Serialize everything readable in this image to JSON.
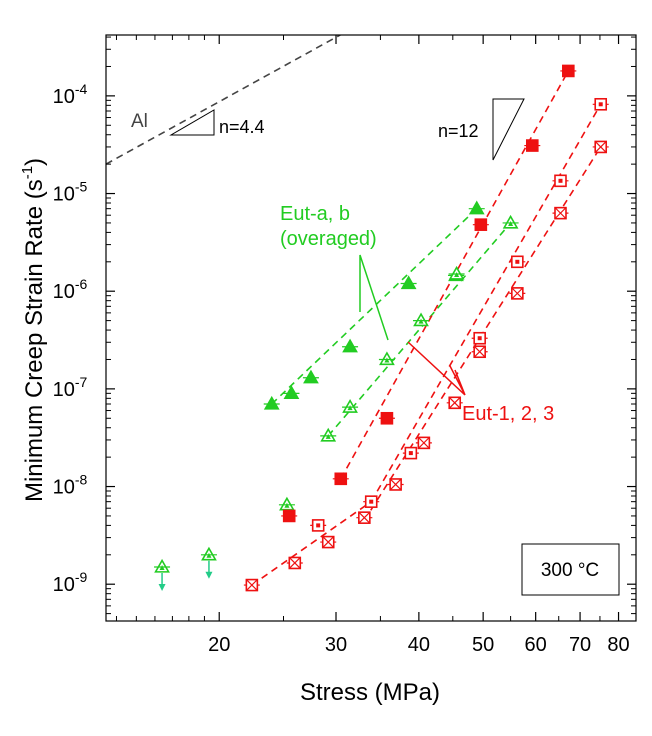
{
  "chart_data": {
    "type": "scatter",
    "xlabel": "Stress (MPa)",
    "ylabel_main": "Minimum Creep Strain Rate (s",
    "ylabel_sup": "-1",
    "ylabel_close": ")",
    "x_scale": "log",
    "y_scale": "log",
    "xlim": [
      13.5,
      85
    ],
    "ylim": [
      4.2e-10,
      0.00042
    ],
    "x_ticks": [
      20,
      30,
      40,
      50,
      60,
      70,
      80
    ],
    "x_tick_labels": [
      "20",
      "30",
      "40",
      "50",
      "60",
      "70",
      "80"
    ],
    "y_ticks": [
      1e-09,
      1e-08,
      1e-07,
      1e-06,
      1e-05,
      0.0001
    ],
    "y_tick_labels": [
      {
        "base": "10",
        "exp": "-9"
      },
      {
        "base": "10",
        "exp": "-8"
      },
      {
        "base": "10",
        "exp": "-7"
      },
      {
        "base": "10",
        "exp": "-6"
      },
      {
        "base": "10",
        "exp": "-5"
      },
      {
        "base": "10",
        "exp": "-4"
      }
    ],
    "grid": false,
    "colors": {
      "green": "#22cc22",
      "red": "#ee1111",
      "arrow": "#22cc88",
      "gray": "#444444"
    },
    "series": [
      {
        "group": "Eut",
        "marker": "triangle-filled",
        "color": "#22cc22",
        "x": [
          24.0,
          25.7,
          27.5,
          31.5,
          38.6,
          45.5,
          48.9
        ],
        "y": [
          7e-08,
          9e-08,
          1.3e-07,
          2.7e-07,
          1.2e-06,
          1.45e-06,
          7e-06
        ]
      },
      {
        "group": "Eut",
        "marker": "triangle-hollow",
        "color": "#22cc22",
        "x": [
          25.3,
          29.2,
          31.5,
          35.8,
          40.3,
          45.6,
          55.0
        ],
        "y": [
          6.5e-09,
          3.3e-08,
          6.5e-08,
          2e-07,
          5e-07,
          1.5e-06,
          5e-06
        ]
      },
      {
        "group": "Eut",
        "marker": "square-filled",
        "color": "#ee1111",
        "x": [
          25.5,
          30.5,
          35.8,
          49.6,
          59.3,
          67.2
        ],
        "y": [
          5e-09,
          1.2e-08,
          5e-08,
          4.8e-06,
          3.1e-05,
          0.00018
        ]
      },
      {
        "group": "Eut",
        "marker": "square-hollow",
        "color": "#ee1111",
        "x": [
          28.2,
          33.9,
          38.9,
          49.4,
          56.3,
          65.4,
          75.2
        ],
        "y": [
          4e-09,
          7e-09,
          2.2e-08,
          3.3e-07,
          2e-06,
          1.35e-05,
          8.2e-05
        ]
      },
      {
        "group": "Eut",
        "marker": "square-crossed",
        "color": "#ee1111",
        "x": [
          22.4,
          26.0,
          29.2,
          33.1,
          36.9,
          40.7,
          45.3,
          49.4,
          56.3,
          65.4,
          75.2
        ],
        "y": [
          9.8e-10,
          1.65e-09,
          2.7e-09,
          4.8e-09,
          1.05e-08,
          2.8e-08,
          7.2e-08,
          2.4e-07,
          9.5e-07,
          6.3e-06,
          3e-05
        ]
      },
      {
        "group": "Eut",
        "marker": "triangle-hollow-arrow",
        "color": "#22cc22",
        "x": [
          16.4,
          19.3
        ],
        "y": [
          1.5e-09,
          2e-09
        ]
      }
    ],
    "fit_lines": [
      {
        "color": "#22cc22",
        "x": [
          24.0,
          48.9
        ],
        "y": [
          7e-08,
          7e-06
        ]
      },
      {
        "color": "#22cc22",
        "x": [
          29.2,
          55.0
        ],
        "y": [
          3.3e-08,
          5e-06
        ]
      },
      {
        "color": "#ee1111",
        "x": [
          30.5,
          67.2
        ],
        "y": [
          1.2e-08,
          0.00018
        ]
      },
      {
        "color": "#ee1111",
        "x": [
          22.4,
          33.9
        ],
        "y": [
          9.8e-10,
          7e-09
        ]
      },
      {
        "color": "#ee1111",
        "x": [
          33.9,
          75.2
        ],
        "y": [
          7e-09,
          8.2e-05
        ]
      },
      {
        "color": "#ee1111",
        "x": [
          33.1,
          75.2
        ],
        "y": [
          4.5e-09,
          3e-05
        ]
      },
      {
        "color": "#444444",
        "x": [
          13.5,
          31.0
        ],
        "y": [
          2e-05,
          0.00045
        ]
      }
    ],
    "annotations": {
      "al": "Al",
      "n44": "n=4.4",
      "n12": "n=12",
      "eut_ab_line1": "Eut-a, b",
      "eut_ab_line2": "(overaged)",
      "eut_123": "Eut-1, 2, 3",
      "temperature": "300 °C"
    }
  }
}
